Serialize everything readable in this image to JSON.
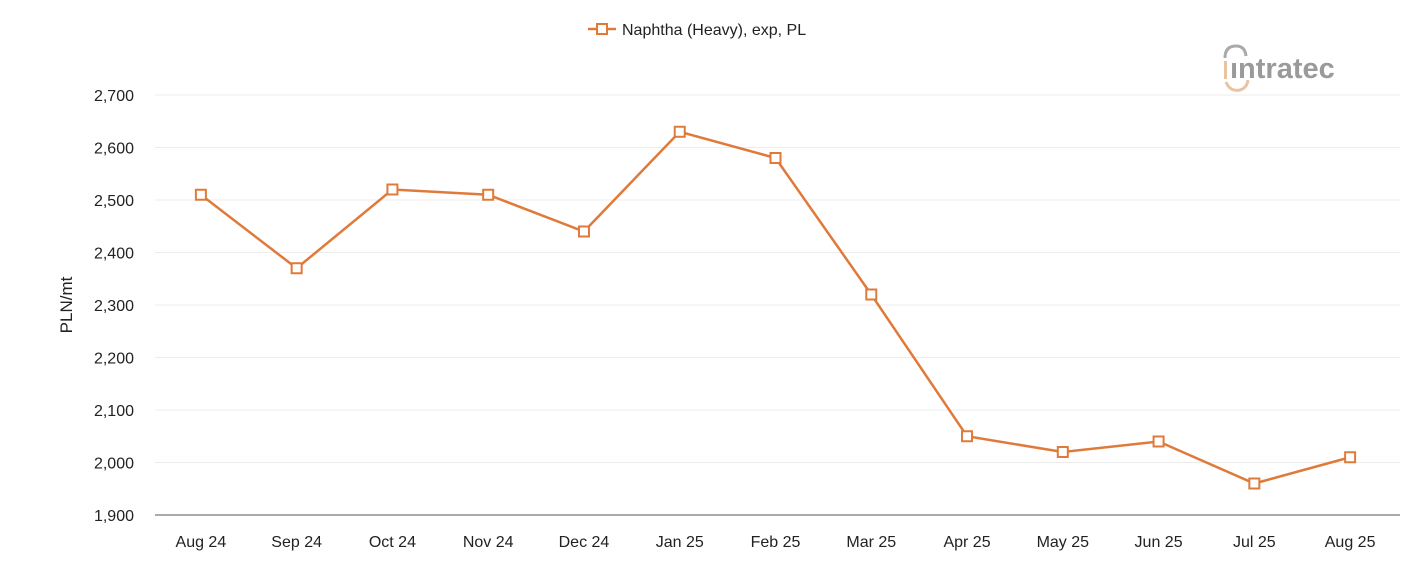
{
  "chart_data": {
    "type": "line",
    "title": "",
    "xlabel": "",
    "ylabel": "PLN/mt",
    "ylim": [
      1900,
      2700
    ],
    "yticks": [
      1900,
      2000,
      2100,
      2200,
      2300,
      2400,
      2500,
      2600,
      2700
    ],
    "ytick_labels": [
      "1,900",
      "2,000",
      "2,100",
      "2,200",
      "2,300",
      "2,400",
      "2,500",
      "2,600",
      "2,700"
    ],
    "grid": true,
    "legend_position": "top-center",
    "categories": [
      "Aug 24",
      "Sep 24",
      "Oct 24",
      "Nov 24",
      "Dec 24",
      "Jan 25",
      "Feb 25",
      "Mar 25",
      "Apr 25",
      "May 25",
      "Jun 25",
      "Jul 25",
      "Aug 25"
    ],
    "series": [
      {
        "name": "Naphtha (Heavy), exp, PL",
        "color": "#E07A3A",
        "marker": "square-open",
        "values": [
          2510,
          2370,
          2520,
          2510,
          2440,
          2630,
          2580,
          2320,
          2050,
          2020,
          2040,
          1960,
          2010
        ]
      }
    ]
  },
  "logo": {
    "text": "intratec"
  }
}
